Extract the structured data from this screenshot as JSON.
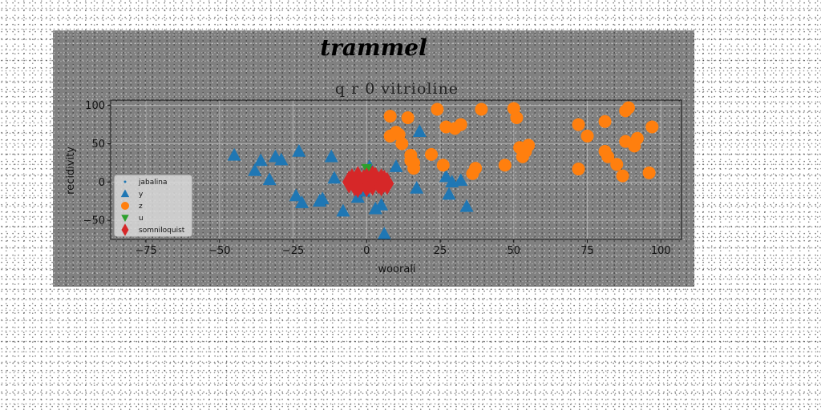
{
  "chart_data": {
    "type": "scatter",
    "suptitle": "trammel",
    "title": "q r 0 vitrioline",
    "xlabel": "woorali",
    "ylabel": "recidivity",
    "xlim": [
      -87,
      107
    ],
    "ylim": [
      -75,
      107
    ],
    "xticks": [
      -75,
      -50,
      -25,
      0,
      25,
      50,
      75,
      100
    ],
    "yticks": [
      -50,
      0,
      50,
      100
    ],
    "grid": true,
    "legend": "lower-left",
    "series": [
      {
        "name": "jabalina",
        "marker": "point",
        "color": "#1f77b4",
        "x": [
          1,
          3,
          -2,
          4
        ],
        "y": [
          -2,
          1,
          3,
          -4
        ]
      },
      {
        "name": "y",
        "marker": "triangle-up",
        "color": "#1f77b4",
        "x": [
          -45,
          -36,
          -38,
          -33,
          -31,
          -29,
          -24,
          -22,
          -23,
          -15,
          -16,
          -12,
          -11,
          -8,
          -3,
          -1,
          1,
          3,
          5,
          6,
          10,
          17,
          18,
          27,
          28,
          29,
          32,
          34
        ],
        "y": [
          35,
          28,
          15,
          3,
          33,
          29,
          -18,
          -27,
          40,
          -22,
          -25,
          33,
          5,
          -38,
          -20,
          -12,
          20,
          -35,
          -30,
          -68,
          20,
          -8,
          66,
          7,
          -16,
          0,
          2,
          -32
        ]
      },
      {
        "name": "z",
        "marker": "circle",
        "color": "#ff7f0e",
        "x": [
          8,
          8,
          10,
          11,
          12,
          14,
          15,
          15,
          16,
          16,
          22,
          24,
          26,
          27,
          30,
          32,
          36,
          37,
          39,
          47,
          50,
          51,
          52,
          53,
          54,
          55,
          72,
          72,
          75,
          81,
          81,
          82,
          85,
          87,
          88,
          88,
          89,
          91,
          92,
          96,
          97
        ],
        "y": [
          86,
          60,
          65,
          62,
          50,
          84,
          35,
          28,
          18,
          25,
          36,
          95,
          22,
          72,
          70,
          75,
          11,
          18,
          95,
          22,
          96,
          84,
          45,
          33,
          40,
          48,
          75,
          17,
          60,
          79,
          40,
          33,
          23,
          8,
          53,
          93,
          97,
          47,
          57,
          12,
          72
        ]
      },
      {
        "name": "u",
        "marker": "triangle-down",
        "color": "#2ca02c",
        "x": [
          0,
          1
        ],
        "y": [
          18,
          14
        ]
      },
      {
        "name": "somniloquist",
        "marker": "thin-diamond",
        "color": "#d62728",
        "x": [
          -6,
          -5,
          -4,
          -3,
          -2,
          -1,
          0,
          0,
          1,
          2,
          3,
          4,
          5,
          5,
          6,
          7,
          -3,
          2
        ],
        "y": [
          0,
          3,
          -4,
          6,
          -2,
          2,
          -5,
          4,
          0,
          -3,
          5,
          -1,
          3,
          -4,
          1,
          -2,
          -6,
          7
        ]
      }
    ]
  }
}
